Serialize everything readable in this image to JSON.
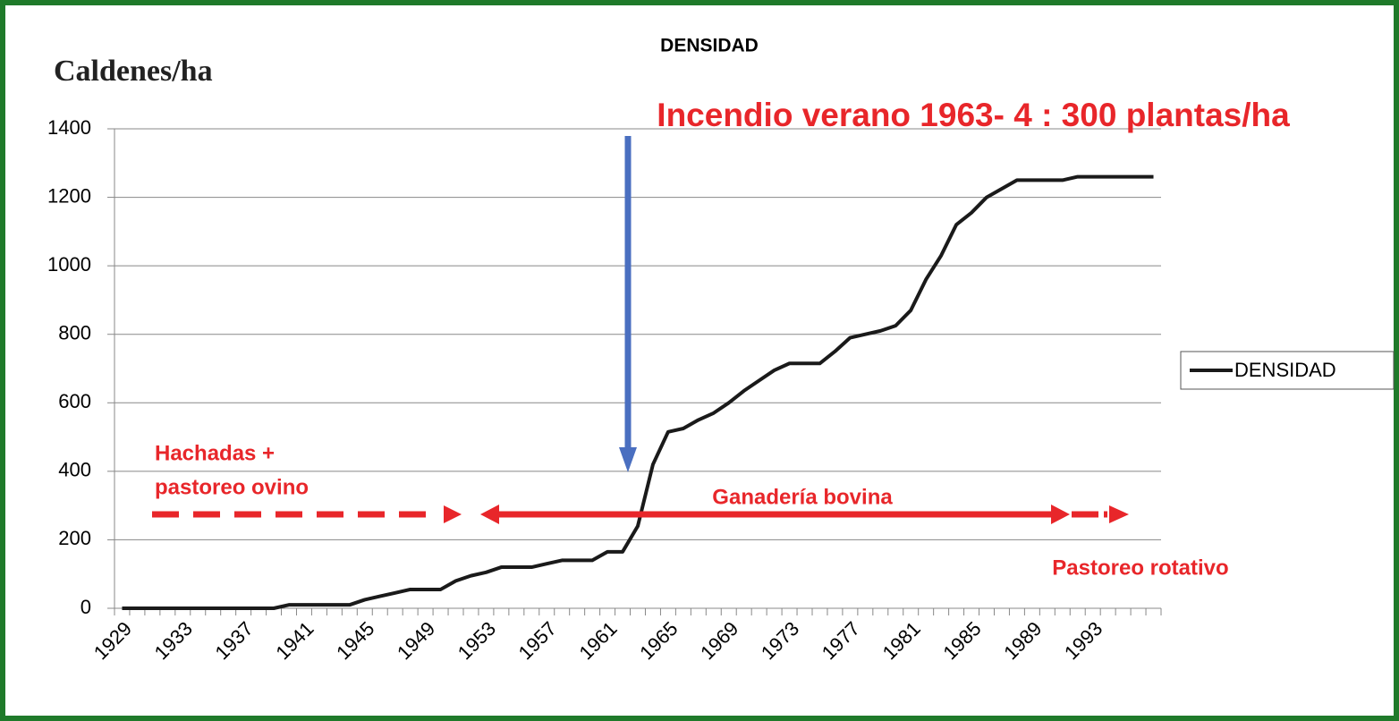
{
  "chart_data": {
    "type": "line",
    "title": "DENSIDAD",
    "y_label": "Caldenes/ha",
    "categories": [
      "1929",
      null,
      null,
      null,
      "1933",
      null,
      null,
      null,
      "1937",
      null,
      null,
      null,
      "1941",
      null,
      null,
      null,
      "1945",
      null,
      null,
      null,
      "1949",
      null,
      null,
      null,
      "1953",
      null,
      null,
      null,
      "1957",
      null,
      null,
      null,
      "1961",
      null,
      null,
      null,
      "1965",
      null,
      null,
      null,
      "1969",
      null,
      null,
      null,
      "1973",
      null,
      null,
      null,
      "1977",
      null,
      null,
      null,
      "1981",
      null,
      null,
      null,
      "1985",
      null,
      null,
      null,
      "1989",
      null,
      null,
      null,
      "1993",
      null,
      null,
      null,
      null
    ],
    "series": [
      {
        "name": "DENSIDAD",
        "color": "#1a1a1a",
        "values": [
          0,
          0,
          0,
          0,
          0,
          0,
          0,
          0,
          0,
          0,
          0,
          10,
          10,
          10,
          10,
          10,
          25,
          35,
          45,
          55,
          55,
          55,
          80,
          95,
          105,
          120,
          120,
          120,
          130,
          140,
          140,
          140,
          165,
          165,
          240,
          420,
          515,
          525,
          550,
          570,
          600,
          635,
          665,
          695,
          715,
          715,
          715,
          750,
          790,
          800,
          810,
          825,
          870,
          960,
          1030,
          1120,
          1155,
          1200,
          1225,
          1250,
          1250,
          1250,
          1250,
          1260,
          1260,
          1260,
          1260,
          1260,
          1260
        ]
      }
    ],
    "ylim": [
      0,
      1400
    ],
    "yticks": [
      0,
      200,
      400,
      600,
      800,
      1000,
      1200,
      1400
    ],
    "grid": true,
    "legend": "right",
    "annotations": [
      "Incendio verano 1963- 4 : 300 plantas/ha",
      "Hachadas +",
      "pastoreo ovino",
      "Ganadería bovina",
      "Pastoreo rotativo"
    ]
  }
}
